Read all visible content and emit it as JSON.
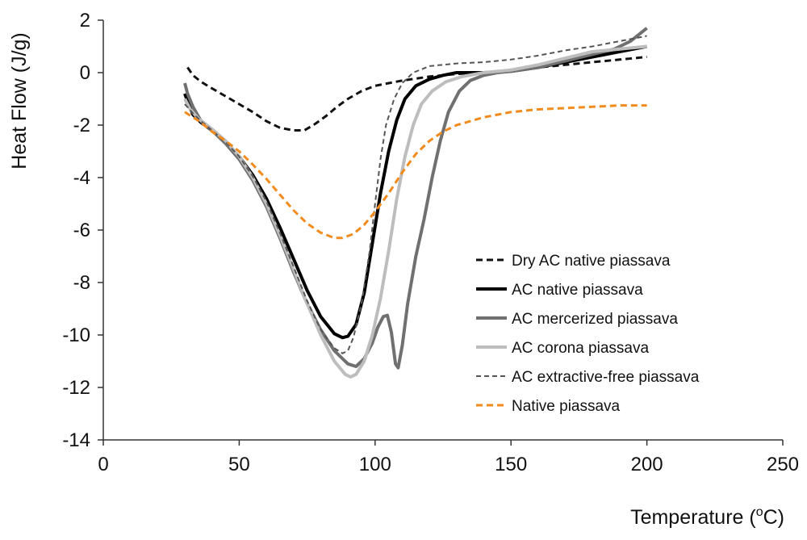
{
  "chart_data": {
    "type": "line",
    "title": "",
    "xlabel": "Temperature (",
    "xlabel_sup": "o",
    "xlabel_suffix": "C)",
    "ylabel": "Heat Flow (J/g)",
    "xlim": [
      0,
      250
    ],
    "ylim": [
      -14,
      2
    ],
    "x_ticks": [
      0,
      50,
      100,
      150,
      200,
      250
    ],
    "y_ticks": [
      2,
      0,
      -2,
      -4,
      -6,
      -8,
      -10,
      -12,
      -14
    ],
    "grid": false,
    "legend_position": "right",
    "series": [
      {
        "name": "Dry AC native piassava",
        "color": "#111111",
        "dash": "dashed",
        "width": 3,
        "points": [
          [
            31,
            0.2
          ],
          [
            33,
            -0.1
          ],
          [
            36,
            -0.35
          ],
          [
            40,
            -0.6
          ],
          [
            45,
            -0.9
          ],
          [
            50,
            -1.2
          ],
          [
            55,
            -1.5
          ],
          [
            60,
            -1.85
          ],
          [
            65,
            -2.1
          ],
          [
            70,
            -2.2
          ],
          [
            74,
            -2.2
          ],
          [
            78,
            -1.95
          ],
          [
            82,
            -1.65
          ],
          [
            86,
            -1.3
          ],
          [
            90,
            -1.0
          ],
          [
            95,
            -0.7
          ],
          [
            100,
            -0.5
          ],
          [
            110,
            -0.3
          ],
          [
            120,
            -0.15
          ],
          [
            130,
            -0.05
          ],
          [
            140,
            0.0
          ],
          [
            150,
            0.1
          ],
          [
            160,
            0.2
          ],
          [
            170,
            0.3
          ],
          [
            180,
            0.4
          ],
          [
            190,
            0.5
          ],
          [
            200,
            0.6
          ]
        ]
      },
      {
        "name": "AC native piassava",
        "color": "#000000",
        "dash": "solid",
        "width": 4,
        "points": [
          [
            30,
            -0.8
          ],
          [
            31,
            -1.1
          ],
          [
            33,
            -1.6
          ],
          [
            36,
            -1.9
          ],
          [
            40,
            -2.2
          ],
          [
            45,
            -2.65
          ],
          [
            50,
            -3.2
          ],
          [
            55,
            -3.9
          ],
          [
            60,
            -4.8
          ],
          [
            65,
            -5.9
          ],
          [
            70,
            -7.1
          ],
          [
            75,
            -8.3
          ],
          [
            80,
            -9.3
          ],
          [
            85,
            -9.95
          ],
          [
            88,
            -10.1
          ],
          [
            90,
            -10.05
          ],
          [
            93,
            -9.6
          ],
          [
            96,
            -8.4
          ],
          [
            99,
            -6.5
          ],
          [
            102,
            -4.6
          ],
          [
            105,
            -3.0
          ],
          [
            108,
            -1.8
          ],
          [
            111,
            -1.0
          ],
          [
            115,
            -0.5
          ],
          [
            120,
            -0.25
          ],
          [
            125,
            -0.1
          ],
          [
            130,
            0.0
          ],
          [
            140,
            0.0
          ],
          [
            150,
            0.05
          ],
          [
            160,
            0.2
          ],
          [
            170,
            0.4
          ],
          [
            180,
            0.6
          ],
          [
            190,
            0.8
          ],
          [
            200,
            1.0
          ]
        ]
      },
      {
        "name": "AC mercerized piassava",
        "color": "#707070",
        "dash": "solid",
        "width": 4,
        "points": [
          [
            30,
            -0.4
          ],
          [
            31,
            -0.8
          ],
          [
            33,
            -1.3
          ],
          [
            36,
            -1.85
          ],
          [
            40,
            -2.2
          ],
          [
            45,
            -2.7
          ],
          [
            50,
            -3.3
          ],
          [
            55,
            -4.1
          ],
          [
            60,
            -5.1
          ],
          [
            65,
            -6.3
          ],
          [
            70,
            -7.6
          ],
          [
            75,
            -8.8
          ],
          [
            80,
            -9.8
          ],
          [
            85,
            -10.6
          ],
          [
            90,
            -11.1
          ],
          [
            93,
            -11.2
          ],
          [
            96,
            -10.9
          ],
          [
            99,
            -10.3
          ],
          [
            101,
            -9.7
          ],
          [
            103,
            -9.3
          ],
          [
            104.5,
            -9.25
          ],
          [
            106,
            -9.9
          ],
          [
            107.5,
            -11.1
          ],
          [
            108.5,
            -11.25
          ],
          [
            110,
            -10.4
          ],
          [
            112,
            -8.8
          ],
          [
            115,
            -7.0
          ],
          [
            118,
            -5.6
          ],
          [
            121,
            -4.0
          ],
          [
            124,
            -2.6
          ],
          [
            127,
            -1.5
          ],
          [
            131,
            -0.7
          ],
          [
            135,
            -0.3
          ],
          [
            140,
            -0.1
          ],
          [
            145,
            0.0
          ],
          [
            150,
            0.05
          ],
          [
            160,
            0.2
          ],
          [
            170,
            0.45
          ],
          [
            180,
            0.7
          ],
          [
            188,
            0.9
          ],
          [
            194,
            1.2
          ],
          [
            200,
            1.7
          ]
        ]
      },
      {
        "name": "AC corona piassava",
        "color": "#bdbdbd",
        "dash": "solid",
        "width": 4,
        "points": [
          [
            30,
            -1.0
          ],
          [
            32,
            -1.4
          ],
          [
            35,
            -1.75
          ],
          [
            40,
            -2.15
          ],
          [
            45,
            -2.6
          ],
          [
            50,
            -3.2
          ],
          [
            55,
            -4.0
          ],
          [
            60,
            -5.0
          ],
          [
            65,
            -6.2
          ],
          [
            70,
            -7.5
          ],
          [
            75,
            -8.8
          ],
          [
            80,
            -10.0
          ],
          [
            85,
            -11.0
          ],
          [
            89,
            -11.5
          ],
          [
            91,
            -11.6
          ],
          [
            93,
            -11.5
          ],
          [
            96,
            -11.0
          ],
          [
            99,
            -10.0
          ],
          [
            102,
            -8.6
          ],
          [
            105,
            -6.8
          ],
          [
            108,
            -4.8
          ],
          [
            111,
            -3.2
          ],
          [
            114,
            -2.0
          ],
          [
            117,
            -1.2
          ],
          [
            121,
            -0.7
          ],
          [
            126,
            -0.35
          ],
          [
            132,
            -0.15
          ],
          [
            140,
            0.0
          ],
          [
            150,
            0.1
          ],
          [
            160,
            0.3
          ],
          [
            170,
            0.55
          ],
          [
            180,
            0.8
          ],
          [
            190,
            0.9
          ],
          [
            200,
            1.0
          ]
        ]
      },
      {
        "name": "AC extractive-free piassava",
        "color": "#555555",
        "dash": "dashed",
        "width": 2,
        "points": [
          [
            30,
            -1.2
          ],
          [
            33,
            -1.55
          ],
          [
            36,
            -1.85
          ],
          [
            40,
            -2.2
          ],
          [
            45,
            -2.65
          ],
          [
            50,
            -3.2
          ],
          [
            55,
            -3.95
          ],
          [
            60,
            -4.9
          ],
          [
            65,
            -6.1
          ],
          [
            70,
            -7.4
          ],
          [
            75,
            -8.7
          ],
          [
            80,
            -9.8
          ],
          [
            85,
            -10.5
          ],
          [
            88,
            -10.7
          ],
          [
            90,
            -10.6
          ],
          [
            92,
            -10.1
          ],
          [
            95,
            -8.8
          ],
          [
            98,
            -6.8
          ],
          [
            100,
            -5.0
          ],
          [
            102,
            -3.3
          ],
          [
            104,
            -2.0
          ],
          [
            107,
            -1.0
          ],
          [
            110,
            -0.4
          ],
          [
            114,
            0.0
          ],
          [
            120,
            0.25
          ],
          [
            130,
            0.35
          ],
          [
            140,
            0.4
          ],
          [
            150,
            0.5
          ],
          [
            160,
            0.65
          ],
          [
            170,
            0.85
          ],
          [
            180,
            1.0
          ],
          [
            190,
            1.2
          ],
          [
            200,
            1.4
          ]
        ]
      },
      {
        "name": "Native piassava",
        "color": "#f28a1c",
        "dash": "dashed",
        "width": 3,
        "points": [
          [
            30,
            -1.5
          ],
          [
            33,
            -1.7
          ],
          [
            36,
            -1.9
          ],
          [
            40,
            -2.25
          ],
          [
            45,
            -2.6
          ],
          [
            50,
            -3.0
          ],
          [
            55,
            -3.5
          ],
          [
            60,
            -4.05
          ],
          [
            65,
            -4.65
          ],
          [
            70,
            -5.25
          ],
          [
            75,
            -5.75
          ],
          [
            80,
            -6.1
          ],
          [
            85,
            -6.3
          ],
          [
            88,
            -6.3
          ],
          [
            92,
            -6.15
          ],
          [
            96,
            -5.8
          ],
          [
            100,
            -5.3
          ],
          [
            105,
            -4.6
          ],
          [
            110,
            -3.8
          ],
          [
            115,
            -3.1
          ],
          [
            120,
            -2.6
          ],
          [
            125,
            -2.25
          ],
          [
            130,
            -2.0
          ],
          [
            140,
            -1.7
          ],
          [
            150,
            -1.5
          ],
          [
            160,
            -1.4
          ],
          [
            170,
            -1.35
          ],
          [
            180,
            -1.3
          ],
          [
            190,
            -1.25
          ],
          [
            200,
            -1.25
          ]
        ]
      }
    ]
  }
}
